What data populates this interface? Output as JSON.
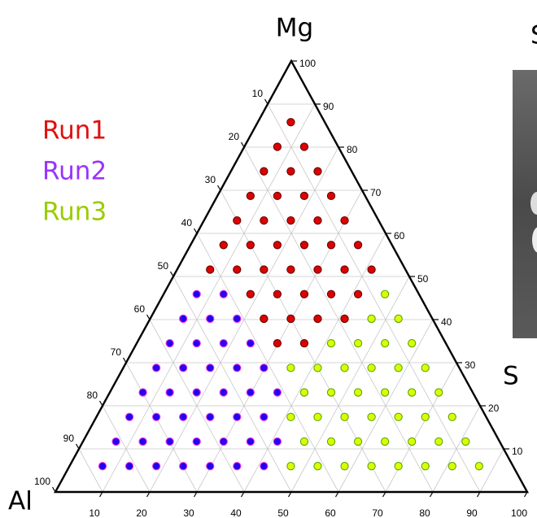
{
  "chart_data": {
    "type": "ternary",
    "top_label": "Mg",
    "left_label": "Al",
    "right_label": "S",
    "mg_lim": [
      0,
      100
    ],
    "si_lim": [
      0,
      100
    ],
    "al_lim": [
      0,
      100
    ],
    "mg_ticks": [
      10,
      20,
      30,
      40,
      50,
      60,
      70,
      80,
      90,
      100
    ],
    "si_ticks": [
      10,
      20,
      30,
      40,
      50,
      60,
      70,
      80,
      90,
      100
    ],
    "al_ticks": [
      10,
      20,
      30,
      40,
      50,
      60,
      70,
      80,
      90,
      100
    ],
    "grid": true,
    "series": [
      {
        "name": "Run1",
        "color": "#e01010",
        "fill": "#dd0000",
        "edge": "#660000",
        "mg": [
          34.5,
          34.5,
          40.2,
          40.2,
          40.2,
          40.2,
          45.9,
          45.9,
          45.9,
          45.9,
          45.9,
          51.6,
          51.6,
          51.6,
          51.6,
          51.6,
          51.6,
          51.6,
          57.3,
          57.3,
          57.3,
          57.3,
          57.3,
          57.3,
          63,
          63,
          63,
          63,
          63,
          68.7,
          68.7,
          68.7,
          68.7,
          74.4,
          74.4,
          74.4,
          80.1,
          80.1,
          85.8
        ],
        "si": [
          29.8,
          35.5,
          24.1,
          29.8,
          35.5,
          41.2,
          18.4,
          24.1,
          29.8,
          35.5,
          41.2,
          7,
          12.7,
          18.4,
          24.1,
          29.8,
          35.5,
          41.2,
          7,
          12.7,
          18.4,
          24.1,
          29.8,
          35.5,
          7,
          12.7,
          18.4,
          24.1,
          29.8,
          7,
          12.7,
          18.4,
          24.1,
          7,
          12.7,
          18.4,
          7,
          12.7,
          7
        ]
      },
      {
        "name": "Run2",
        "color": "#9933ff",
        "fill": "#2200ee",
        "edge": "#ee33ee",
        "mg": [
          6,
          6,
          6,
          6,
          6,
          6,
          6,
          11.7,
          11.7,
          11.7,
          11.7,
          11.7,
          11.7,
          11.7,
          17.4,
          17.4,
          17.4,
          17.4,
          17.4,
          17.4,
          23.1,
          23.1,
          23.1,
          23.1,
          23.1,
          23.1,
          28.8,
          28.8,
          28.8,
          28.8,
          28.8,
          34.5,
          34.5,
          34.5,
          34.5,
          40.2,
          40.2,
          40.2,
          45.9,
          45.9
        ],
        "si": [
          7,
          12.7,
          18.4,
          24.1,
          29.8,
          35.5,
          41.2,
          7,
          12.7,
          18.4,
          24.1,
          29.8,
          35.5,
          41.2,
          7,
          12.7,
          18.4,
          24.1,
          29.8,
          35.5,
          7,
          12.7,
          18.4,
          24.1,
          29.8,
          35.5,
          7,
          12.7,
          18.4,
          24.1,
          29.8,
          7,
          12.7,
          18.4,
          24.1,
          7,
          12.7,
          18.4,
          7,
          12.7
        ]
      },
      {
        "name": "Run3",
        "color": "#99cc00",
        "fill": "#ddff00",
        "edge": "#55aa00",
        "mg": [
          6,
          6,
          6,
          6,
          6,
          6,
          6,
          6,
          11.7,
          11.7,
          11.7,
          11.7,
          11.7,
          11.7,
          11.7,
          17.4,
          17.4,
          17.4,
          17.4,
          17.4,
          17.4,
          17.4,
          23.1,
          23.1,
          23.1,
          23.1,
          23.1,
          23.1,
          28.8,
          28.8,
          28.8,
          28.8,
          28.8,
          28.8,
          34.5,
          34.5,
          34.5,
          34.5,
          40.2,
          40.2,
          45.9
        ],
        "si": [
          46.9,
          52.6,
          58.3,
          64,
          69.7,
          75.4,
          81.1,
          86.8,
          46.9,
          52.6,
          58.3,
          64,
          69.7,
          75.4,
          81.1,
          41.2,
          46.9,
          52.6,
          58.3,
          64,
          69.7,
          75.4,
          41.2,
          46.9,
          52.6,
          58.3,
          64,
          69.7,
          35.5,
          41.2,
          46.9,
          52.6,
          58.3,
          64,
          41.2,
          46.9,
          52.6,
          58.3,
          46.9,
          52.6,
          46.9
        ]
      }
    ]
  },
  "other_panel": {
    "title": "S",
    "side_label": "S"
  }
}
